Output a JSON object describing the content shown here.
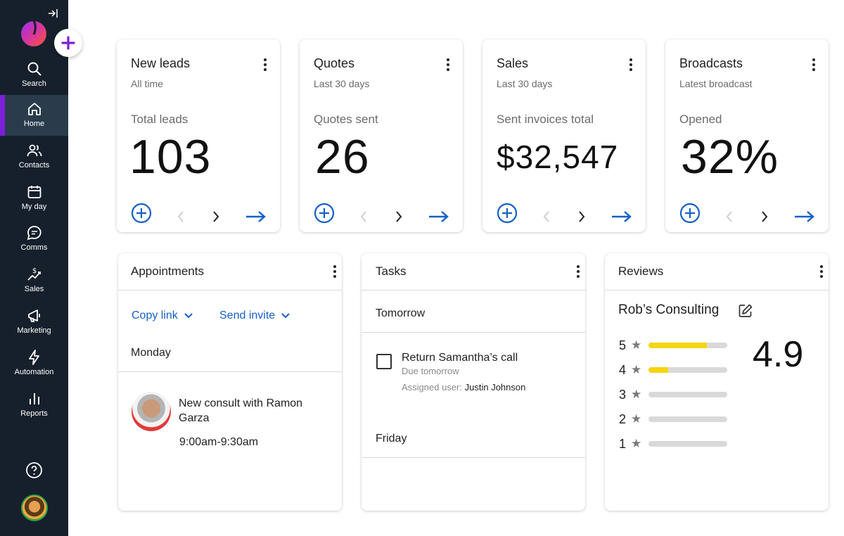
{
  "sidebar": {
    "items": [
      {
        "label": "Search",
        "icon": "search-icon"
      },
      {
        "label": "Home",
        "icon": "home-icon"
      },
      {
        "label": "Contacts",
        "icon": "contacts-icon"
      },
      {
        "label": "My day",
        "icon": "calendar-icon"
      },
      {
        "label": "Comms",
        "icon": "chat-icon"
      },
      {
        "label": "Sales",
        "icon": "sales-icon"
      },
      {
        "label": "Marketing",
        "icon": "megaphone-icon"
      },
      {
        "label": "Automation",
        "icon": "lightning-icon"
      },
      {
        "label": "Reports",
        "icon": "reports-icon"
      }
    ],
    "active": "Home"
  },
  "colors": {
    "sidebar": "#16202c",
    "accent_purple": "#7c1fd9",
    "link_blue": "#1560c6",
    "star_yellow": "#f5d50d"
  },
  "cards": [
    {
      "title": "New leads",
      "subtitle": "All time",
      "metric_label": "Total leads",
      "metric": "103"
    },
    {
      "title": "Quotes",
      "subtitle": "Last 30 days",
      "metric_label": "Quotes sent",
      "metric": "26"
    },
    {
      "title": "Sales",
      "subtitle": "Last 30 days",
      "metric_label": "Sent invoices total",
      "metric": "$32,547"
    },
    {
      "title": "Broadcasts",
      "subtitle": "Latest broadcast",
      "metric_label": "Opened",
      "metric": "32%"
    }
  ],
  "appointments": {
    "title": "Appointments",
    "copy_link": "Copy link",
    "send_invite": "Send invite",
    "day": "Monday",
    "event_title": "New consult with Ramon Garza",
    "event_time": "9:00am-9:30am"
  },
  "tasks": {
    "title": "Tasks",
    "group1": "Tomorrow",
    "task_title": "Return Samantha’s call",
    "task_due": "Due tomorrow",
    "assigned_label": "Assigned user:",
    "assigned_user": "Justin Johnson",
    "group2": "Friday"
  },
  "reviews": {
    "title": "Reviews",
    "business": "Rob’s Consulting",
    "score": "4.9",
    "ratings": [
      {
        "stars": "5",
        "fraction": 0.74
      },
      {
        "stars": "4",
        "fraction": 0.25
      },
      {
        "stars": "3",
        "fraction": 0
      },
      {
        "stars": "2",
        "fraction": 0
      },
      {
        "stars": "1",
        "fraction": 0
      }
    ]
  }
}
